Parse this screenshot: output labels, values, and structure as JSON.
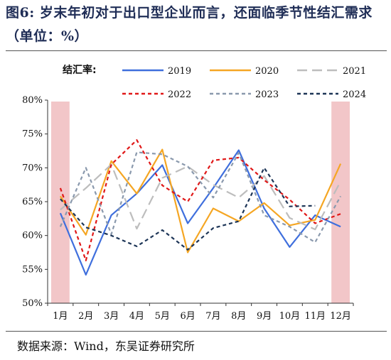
{
  "title": {
    "prefix": "图6:",
    "text": "岁末年初对于出口型企业而言，还面临季节性结汇需求（单位：%）"
  },
  "source": "数据来源：Wind，东吴证券研究所",
  "chart_data": {
    "type": "line",
    "legend_title": "结汇率:",
    "categories": [
      "1月",
      "2月",
      "3月",
      "4月",
      "5月",
      "6月",
      "7月",
      "8月",
      "9月",
      "10月",
      "11月",
      "12月"
    ],
    "yticks": [
      "50%",
      "55%",
      "60%",
      "65%",
      "70%",
      "75%",
      "80%"
    ],
    "ylim": [
      50,
      80
    ],
    "legend_position": "top",
    "highlight_months": [
      "1月",
      "12月"
    ],
    "highlight_color": "#f2c6c8",
    "series": [
      {
        "name": "2019",
        "color": "#3f6fdd",
        "dash": "solid",
        "values": [
          63.3,
          54.2,
          63.0,
          66.2,
          70.4,
          61.8,
          67.0,
          72.6,
          64.0,
          58.3,
          63.0,
          61.3
        ]
      },
      {
        "name": "2020",
        "color": "#f5a623",
        "dash": "solid",
        "values": [
          65.8,
          60.1,
          71.0,
          66.2,
          72.7,
          57.5,
          64.0,
          62.1,
          64.8,
          61.5,
          62.3,
          70.6
        ]
      },
      {
        "name": "2021",
        "color": "#bdbdbd",
        "dash": "long",
        "values": [
          63.8,
          67.0,
          70.5,
          61.0,
          68.5,
          70.2,
          67.5,
          65.6,
          68.8,
          62.6,
          60.9,
          68.0
        ]
      },
      {
        "name": "2022",
        "color": "#e01818",
        "dash": "short",
        "values": [
          67.0,
          56.3,
          70.5,
          74.1,
          67.4,
          65.0,
          71.1,
          71.5,
          68.2,
          65.3,
          61.8,
          63.2
        ]
      },
      {
        "name": "2023",
        "color": "#8a99ad",
        "dash": "short",
        "values": [
          61.3,
          70.0,
          60.2,
          72.3,
          72.0,
          70.2,
          65.6,
          72.2,
          63.0,
          61.3,
          59.0,
          65.8
        ]
      },
      {
        "name": "2024",
        "color": "#1d3557",
        "dash": "short",
        "values": [
          65.4,
          61.2,
          60.0,
          58.4,
          60.8,
          57.9,
          61.1,
          62.1,
          70.0,
          64.3,
          64.4,
          null
        ]
      }
    ]
  }
}
